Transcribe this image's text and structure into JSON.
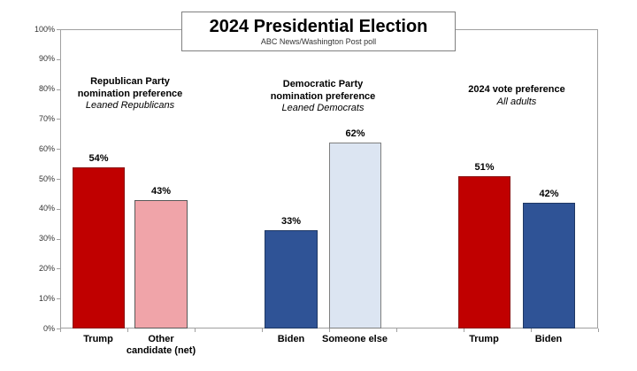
{
  "title_box": {
    "title": "2024 Presidential Election",
    "subtitle": "ABC News/Washington Post poll"
  },
  "axis": {
    "y_ticks": [
      "100%",
      "90%",
      "80%",
      "70%",
      "60%",
      "50%",
      "40%",
      "30%",
      "20%",
      "10%",
      "0%"
    ]
  },
  "colors": {
    "trump_red": "#c00000",
    "other_pink": "#f0a4a9",
    "biden_navy": "#2f5396",
    "someone_else_lightblue": "#dce5f2",
    "axis_line": "#a0a0a0"
  },
  "chart_data": {
    "type": "bar",
    "title": "2024 Presidential Election",
    "subtitle": "ABC News/Washington Post poll",
    "ylim": [
      0,
      100
    ],
    "y_tick_step": 10,
    "y_tick_format": "percent",
    "grid": false,
    "legend": "none",
    "groups": [
      {
        "header_lines": [
          "Republican Party",
          "nomination preference"
        ],
        "subheader": "Leaned Republicans",
        "bars": [
          {
            "category": "Trump",
            "label_lines": [
              "Trump",
              ""
            ],
            "value": 54,
            "value_label": "54%",
            "fill": "#c00000",
            "border": "#8a1010"
          },
          {
            "category": "Other candidate (net)",
            "label_lines": [
              "Other",
              "candidate (net)"
            ],
            "value": 43,
            "value_label": "43%",
            "fill": "#f0a4a9",
            "border": "#595959"
          }
        ]
      },
      {
        "header_lines": [
          "Democratic Party",
          "nomination preference"
        ],
        "subheader": "Leaned Democrats",
        "bars": [
          {
            "category": "Biden",
            "label_lines": [
              "Biden",
              ""
            ],
            "value": 33,
            "value_label": "33%",
            "fill": "#2f5396",
            "border": "#1f3864"
          },
          {
            "category": "Someone else",
            "label_lines": [
              "Someone else",
              ""
            ],
            "value": 62,
            "value_label": "62%",
            "fill": "#dce5f2",
            "border": "#7f7f7f"
          }
        ]
      },
      {
        "header_lines": [
          "2024 vote preference",
          ""
        ],
        "subheader": "All adults",
        "bars": [
          {
            "category": "Trump",
            "label_lines": [
              "Trump",
              ""
            ],
            "value": 51,
            "value_label": "51%",
            "fill": "#c00000",
            "border": "#8a1010"
          },
          {
            "category": "Biden",
            "label_lines": [
              "Biden",
              ""
            ],
            "value": 42,
            "value_label": "42%",
            "fill": "#2f5396",
            "border": "#1f3864"
          }
        ]
      }
    ]
  }
}
